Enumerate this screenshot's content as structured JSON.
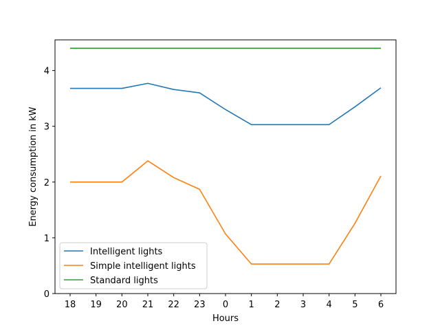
{
  "chart_data": {
    "type": "line",
    "title": "",
    "xlabel": "Hours",
    "ylabel": "Energy consumption in kW",
    "categories": [
      "18",
      "19",
      "20",
      "21",
      "22",
      "23",
      "0",
      "1",
      "2",
      "3",
      "4",
      "5",
      "6"
    ],
    "ylim": [
      0,
      4.55
    ],
    "yticks": [
      0,
      1,
      2,
      3,
      4
    ],
    "grid": false,
    "legend_position": "lower-left",
    "series": [
      {
        "name": "Intelligent lights",
        "color": "#1f77b4",
        "values": [
          3.68,
          3.68,
          3.68,
          3.77,
          3.66,
          3.6,
          3.3,
          3.03,
          3.03,
          3.03,
          3.03,
          3.35,
          3.69
        ]
      },
      {
        "name": "Simple intelligent lights",
        "color": "#ff7f0e",
        "values": [
          2.0,
          2.0,
          2.0,
          2.38,
          2.08,
          1.87,
          1.07,
          0.53,
          0.53,
          0.53,
          0.53,
          1.26,
          2.11
        ]
      },
      {
        "name": "Standard lights",
        "color": "#2ca02c",
        "values": [
          4.4,
          4.4,
          4.4,
          4.4,
          4.4,
          4.4,
          4.4,
          4.4,
          4.4,
          4.4,
          4.4,
          4.4,
          4.4
        ]
      }
    ]
  }
}
